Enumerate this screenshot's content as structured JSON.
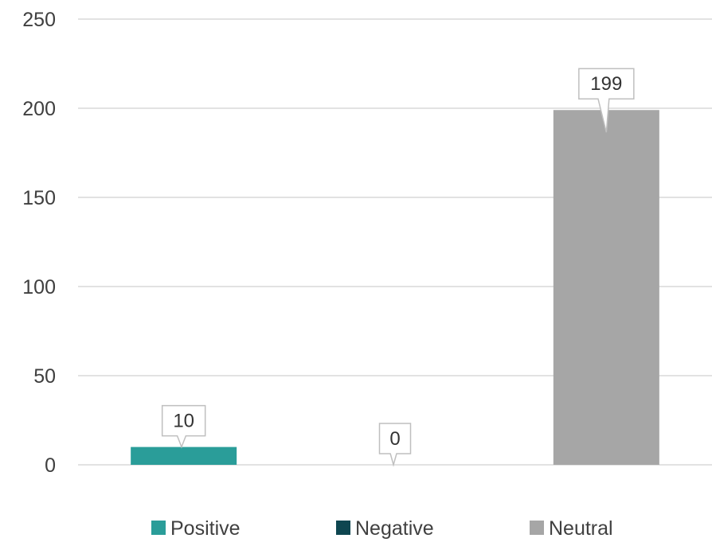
{
  "chart_data": {
    "type": "bar",
    "title": "",
    "xlabel": "",
    "ylabel": "",
    "categories": [
      "Positive",
      "Negative",
      "Neutral"
    ],
    "values": [
      10,
      0,
      199
    ],
    "colors": [
      "#2a9d99",
      "#0e4650",
      "#a6a6a6"
    ],
    "ylim": [
      0,
      250
    ],
    "yticks": [
      0,
      50,
      100,
      150,
      200,
      250
    ],
    "grid": true,
    "legend": {
      "placement": "bottom",
      "entries": [
        "Positive",
        "Negative",
        "Neutral"
      ]
    },
    "data_labels": true,
    "gridline_color": "#d9d9d9",
    "label_border_color": "#bfbfbf"
  }
}
